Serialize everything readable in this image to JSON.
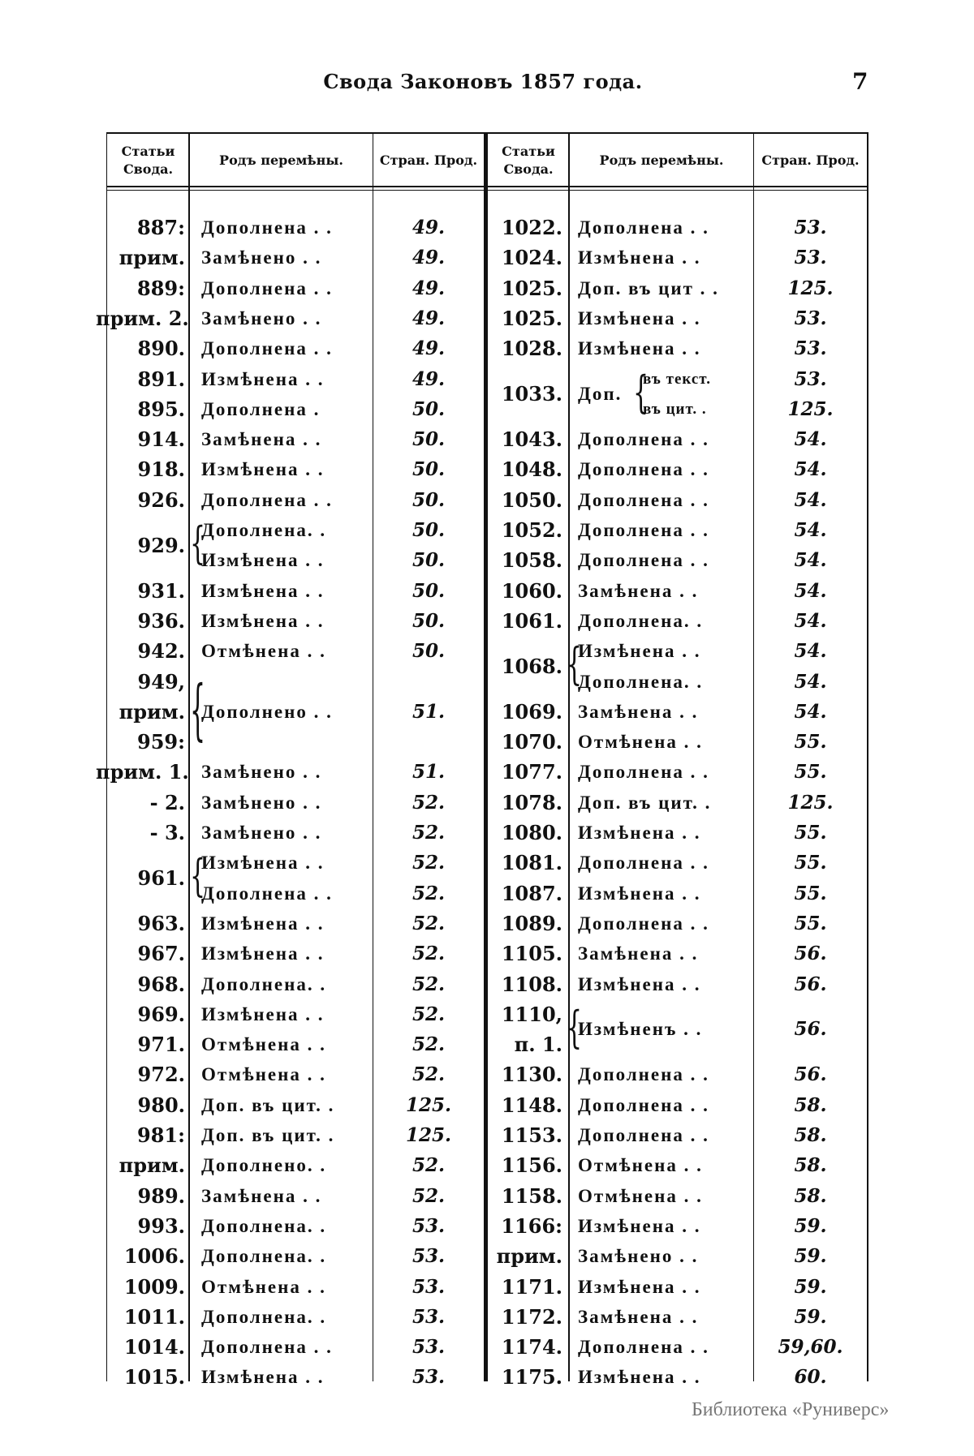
{
  "header": {
    "title": "Свода Законовъ 1857 года.",
    "page_number": "7"
  },
  "columns": {
    "article": "Статьи Свода.",
    "change": "Родъ перемѣны.",
    "page": "Стран. Прод."
  },
  "left": [
    {
      "article": [
        "887:"
      ],
      "span": 1,
      "changes": [
        {
          "text": "Дополнена . .",
          "page": "49."
        }
      ]
    },
    {
      "article": [
        "прим."
      ],
      "span": 1,
      "changes": [
        {
          "text": "Замѣнено . .",
          "page": "49."
        }
      ]
    },
    {
      "article": [
        "889:"
      ],
      "span": 1,
      "changes": [
        {
          "text": "Дополнена . .",
          "page": "49."
        }
      ]
    },
    {
      "article": [
        "прим. 2."
      ],
      "span": 1,
      "changes": [
        {
          "text": "Замѣнено . .",
          "page": "49."
        }
      ]
    },
    {
      "article": [
        "890."
      ],
      "span": 1,
      "changes": [
        {
          "text": "Дополнена . .",
          "page": "49."
        }
      ]
    },
    {
      "article": [
        "891."
      ],
      "span": 1,
      "changes": [
        {
          "text": "Измѣнена . .",
          "page": "49."
        }
      ]
    },
    {
      "article": [
        "895."
      ],
      "span": 1,
      "changes": [
        {
          "text": "Дополнена .",
          "page": "50."
        }
      ]
    },
    {
      "article": [
        "914."
      ],
      "span": 1,
      "changes": [
        {
          "text": "Замѣнена . .",
          "page": "50."
        }
      ]
    },
    {
      "article": [
        "918."
      ],
      "span": 1,
      "changes": [
        {
          "text": "Измѣнена . .",
          "page": "50."
        }
      ]
    },
    {
      "article": [
        "926."
      ],
      "span": 1,
      "changes": [
        {
          "text": "Дополнена . .",
          "page": "50."
        }
      ]
    },
    {
      "article": [
        "929."
      ],
      "span": 2,
      "brace": true,
      "changes": [
        {
          "text": "Дополнена. .",
          "page": "50."
        },
        {
          "text": "Измѣнена . .",
          "page": "50."
        }
      ]
    },
    {
      "article": [
        "931."
      ],
      "span": 1,
      "changes": [
        {
          "text": "Измѣнена . .",
          "page": "50."
        }
      ]
    },
    {
      "article": [
        "936."
      ],
      "span": 1,
      "changes": [
        {
          "text": "Измѣнена . .",
          "page": "50."
        }
      ]
    },
    {
      "article": [
        "942."
      ],
      "span": 1,
      "changes": [
        {
          "text": "Отмѣнена . .",
          "page": "50."
        }
      ]
    },
    {
      "article": [
        "949,",
        "прим.",
        "959:"
      ],
      "span": 3,
      "brace": true,
      "changes": [
        {
          "text": "Дополнено . .",
          "page": "51."
        }
      ]
    },
    {
      "article": [
        "прим. 1."
      ],
      "span": 1,
      "changes": [
        {
          "text": "Замѣнено . .",
          "page": "51."
        }
      ]
    },
    {
      "article": [
        "- 2."
      ],
      "span": 1,
      "changes": [
        {
          "text": "Замѣнено . .",
          "page": "52."
        }
      ]
    },
    {
      "article": [
        "- 3."
      ],
      "span": 1,
      "changes": [
        {
          "text": "Замѣнено . .",
          "page": "52."
        }
      ]
    },
    {
      "article": [
        "961."
      ],
      "span": 2,
      "brace": true,
      "changes": [
        {
          "text": "Измѣнена . .",
          "page": "52."
        },
        {
          "text": "Дополнена . .",
          "page": "52."
        }
      ]
    },
    {
      "article": [
        "963."
      ],
      "span": 1,
      "changes": [
        {
          "text": "Измѣнена . .",
          "page": "52."
        }
      ]
    },
    {
      "article": [
        "967."
      ],
      "span": 1,
      "changes": [
        {
          "text": "Измѣнена . .",
          "page": "52."
        }
      ]
    },
    {
      "article": [
        "968."
      ],
      "span": 1,
      "changes": [
        {
          "text": "Дополнена. .",
          "page": "52."
        }
      ]
    },
    {
      "article": [
        "969."
      ],
      "span": 1,
      "changes": [
        {
          "text": "Измѣнена . .",
          "page": "52."
        }
      ]
    },
    {
      "article": [
        "971."
      ],
      "span": 1,
      "changes": [
        {
          "text": "Отмѣнена . .",
          "page": "52."
        }
      ]
    },
    {
      "article": [
        "972."
      ],
      "span": 1,
      "changes": [
        {
          "text": "Отмѣнена . .",
          "page": "52."
        }
      ]
    },
    {
      "article": [
        "980."
      ],
      "span": 1,
      "changes": [
        {
          "text": "Доп. въ цит.  .",
          "page": "125."
        }
      ]
    },
    {
      "article": [
        "981:"
      ],
      "span": 1,
      "changes": [
        {
          "text": "Доп. въ цит.  .",
          "page": "125."
        }
      ]
    },
    {
      "article": [
        "прим."
      ],
      "span": 1,
      "changes": [
        {
          "text": "Дополнено. .",
          "page": "52."
        }
      ]
    },
    {
      "article": [
        "989."
      ],
      "span": 1,
      "changes": [
        {
          "text": "Замѣнена . .",
          "page": "52."
        }
      ]
    },
    {
      "article": [
        "993."
      ],
      "span": 1,
      "changes": [
        {
          "text": "Дополнена. .",
          "page": "53."
        }
      ]
    },
    {
      "article": [
        "1006."
      ],
      "span": 1,
      "changes": [
        {
          "text": "Дополнена. .",
          "page": "53."
        }
      ]
    },
    {
      "article": [
        "1009."
      ],
      "span": 1,
      "changes": [
        {
          "text": "Отмѣнена . .",
          "page": "53."
        }
      ]
    },
    {
      "article": [
        "1011."
      ],
      "span": 1,
      "changes": [
        {
          "text": "Дополнена. .",
          "page": "53."
        }
      ]
    },
    {
      "article": [
        "1014."
      ],
      "span": 1,
      "changes": [
        {
          "text": "Дополнена . .",
          "page": "53."
        }
      ]
    },
    {
      "article": [
        "1015."
      ],
      "span": 1,
      "changes": [
        {
          "text": "Измѣнена . .",
          "page": "53."
        }
      ]
    }
  ],
  "right": [
    {
      "article": [
        "1022."
      ],
      "span": 1,
      "changes": [
        {
          "text": "Дополнена . .",
          "page": "53."
        }
      ]
    },
    {
      "article": [
        "1024."
      ],
      "span": 1,
      "changes": [
        {
          "text": "Измѣнена . .",
          "page": "53."
        }
      ]
    },
    {
      "article": [
        "1025."
      ],
      "span": 1,
      "changes": [
        {
          "text": "Доп. въ цит . .",
          "page": "125."
        }
      ]
    },
    {
      "article": [
        "1025."
      ],
      "span": 1,
      "changes": [
        {
          "text": "Измѣнена . .",
          "page": "53."
        }
      ]
    },
    {
      "article": [
        "1028."
      ],
      "span": 1,
      "changes": [
        {
          "text": "Измѣнена . .",
          "page": "53."
        }
      ]
    },
    {
      "article": [
        "1033."
      ],
      "span": 2,
      "prefix": "Доп.",
      "changes": [
        {
          "text": "въ текст.",
          "page": "53."
        },
        {
          "text": "въ цит.  .",
          "page": "125."
        }
      ]
    },
    {
      "article": [
        "1043."
      ],
      "span": 1,
      "changes": [
        {
          "text": "Дополнена . .",
          "page": "54."
        }
      ]
    },
    {
      "article": [
        "1048."
      ],
      "span": 1,
      "changes": [
        {
          "text": "Дополнена . .",
          "page": "54."
        }
      ]
    },
    {
      "article": [
        "1050."
      ],
      "span": 1,
      "changes": [
        {
          "text": "Дополнена . .",
          "page": "54."
        }
      ]
    },
    {
      "article": [
        "1052."
      ],
      "span": 1,
      "changes": [
        {
          "text": "Дополнена . .",
          "page": "54."
        }
      ]
    },
    {
      "article": [
        "1058."
      ],
      "span": 1,
      "changes": [
        {
          "text": "Дополнена . .",
          "page": "54."
        }
      ]
    },
    {
      "article": [
        "1060."
      ],
      "span": 1,
      "changes": [
        {
          "text": "Замѣнена . .",
          "page": "54."
        }
      ]
    },
    {
      "article": [
        "1061."
      ],
      "span": 1,
      "changes": [
        {
          "text": "Дополнена. .",
          "page": "54."
        }
      ]
    },
    {
      "article": [
        "1068."
      ],
      "span": 2,
      "brace": true,
      "changes": [
        {
          "text": "Измѣнена . .",
          "page": "54."
        },
        {
          "text": "Дополнена. .",
          "page": "54."
        }
      ]
    },
    {
      "article": [
        "1069."
      ],
      "span": 1,
      "changes": [
        {
          "text": "Замѣнена . .",
          "page": "54."
        }
      ]
    },
    {
      "article": [
        "1070."
      ],
      "span": 1,
      "changes": [
        {
          "text": "Отмѣнена . .",
          "page": "55."
        }
      ]
    },
    {
      "article": [
        "1077."
      ],
      "span": 1,
      "changes": [
        {
          "text": "Дополнена . .",
          "page": "55."
        }
      ]
    },
    {
      "article": [
        "1078."
      ],
      "span": 1,
      "changes": [
        {
          "text": "Доп. въ цит.  .",
          "page": "125."
        }
      ]
    },
    {
      "article": [
        "1080."
      ],
      "span": 1,
      "changes": [
        {
          "text": "Измѣнена . .",
          "page": "55."
        }
      ]
    },
    {
      "article": [
        "1081."
      ],
      "span": 1,
      "changes": [
        {
          "text": "Дополнена . .",
          "page": "55."
        }
      ]
    },
    {
      "article": [
        "1087."
      ],
      "span": 1,
      "changes": [
        {
          "text": "Измѣнена . .",
          "page": "55."
        }
      ]
    },
    {
      "article": [
        "1089."
      ],
      "span": 1,
      "changes": [
        {
          "text": "Дополнена . .",
          "page": "55."
        }
      ]
    },
    {
      "article": [
        "1105."
      ],
      "span": 1,
      "changes": [
        {
          "text": "Замѣнена . .",
          "page": "56."
        }
      ]
    },
    {
      "article": [
        "1108."
      ],
      "span": 1,
      "changes": [
        {
          "text": "Измѣнена . .",
          "page": "56."
        }
      ]
    },
    {
      "article": [
        "1110,",
        "п. 1."
      ],
      "span": 2,
      "brace": true,
      "changes": [
        {
          "text": "Измѣненъ . .",
          "page": "56."
        }
      ]
    },
    {
      "article": [
        "1130."
      ],
      "span": 1,
      "changes": [
        {
          "text": "Дополнена . .",
          "page": "56."
        }
      ]
    },
    {
      "article": [
        "1148."
      ],
      "span": 1,
      "changes": [
        {
          "text": "Дополнена . .",
          "page": "58."
        }
      ]
    },
    {
      "article": [
        "1153."
      ],
      "span": 1,
      "changes": [
        {
          "text": "Дополнена . .",
          "page": "58."
        }
      ]
    },
    {
      "article": [
        "1156."
      ],
      "span": 1,
      "changes": [
        {
          "text": "Отмѣнена . .",
          "page": "58."
        }
      ]
    },
    {
      "article": [
        "1158."
      ],
      "span": 1,
      "changes": [
        {
          "text": "Отмѣнена . .",
          "page": "58."
        }
      ]
    },
    {
      "article": [
        "1166:"
      ],
      "span": 1,
      "changes": [
        {
          "text": "Измѣнена . .",
          "page": "59."
        }
      ]
    },
    {
      "article": [
        "прим."
      ],
      "span": 1,
      "changes": [
        {
          "text": "Замѣнено . .",
          "page": "59."
        }
      ]
    },
    {
      "article": [
        "1171."
      ],
      "span": 1,
      "changes": [
        {
          "text": "Измѣнена . .",
          "page": "59."
        }
      ]
    },
    {
      "article": [
        "1172."
      ],
      "span": 1,
      "changes": [
        {
          "text": "Замѣнена . .",
          "page": "59."
        }
      ]
    },
    {
      "article": [
        "1174."
      ],
      "span": 1,
      "changes": [
        {
          "text": "Дополнена . .",
          "page": "59,60."
        }
      ]
    },
    {
      "article": [
        "1175."
      ],
      "span": 1,
      "changes": [
        {
          "text": "Измѣнена . .",
          "page": "60."
        }
      ]
    }
  ],
  "watermark": "Библиотека «Руниверс»"
}
